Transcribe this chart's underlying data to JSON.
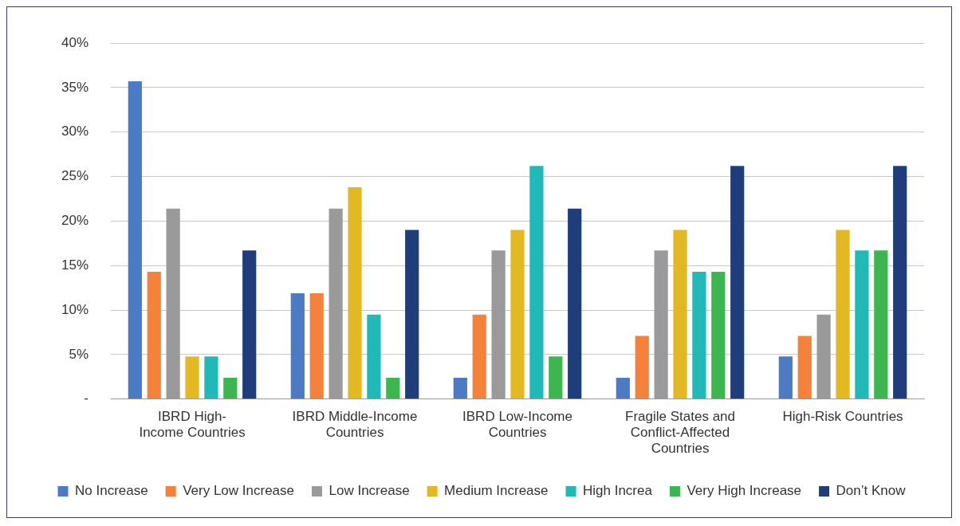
{
  "chart_data": {
    "type": "bar",
    "categories": [
      "IBRD High-\nIncome Countries",
      "IBRD Middle-Income\nCountries",
      "IBRD Low-Income\nCountries",
      "Fragile States and\nConflict-Affected\nCountries",
      "High-Risk Countries"
    ],
    "series": [
      {
        "name": "No Increase",
        "color": "#4a7bc4",
        "values": [
          35.7,
          11.9,
          2.4,
          2.4,
          4.8
        ]
      },
      {
        "name": "Very Low Increase",
        "color": "#f5823a",
        "values": [
          14.3,
          11.9,
          9.5,
          7.1,
          7.1
        ]
      },
      {
        "name": "Low Increase",
        "color": "#9a9a9a",
        "values": [
          21.4,
          21.4,
          16.7,
          16.7,
          9.5
        ]
      },
      {
        "name": "Medium Increase",
        "color": "#e3b923",
        "values": [
          4.8,
          23.8,
          19.0,
          19.0,
          19.0
        ]
      },
      {
        "name": "High Increa",
        "color": "#21b8b8",
        "values": [
          4.8,
          9.5,
          26.2,
          14.3,
          16.7
        ]
      },
      {
        "name": "Very High Increase",
        "color": "#3db64f",
        "values": [
          2.4,
          2.4,
          4.8,
          14.3,
          16.7
        ]
      },
      {
        "name": "Don’t Know",
        "color": "#1f3d7a",
        "values": [
          16.7,
          19.0,
          21.4,
          26.2,
          26.2
        ]
      }
    ],
    "ylim": [
      0,
      40
    ],
    "yticks": [
      {
        "value": 0,
        "label": "-"
      },
      {
        "value": 5,
        "label": "5%"
      },
      {
        "value": 10,
        "label": "10%"
      },
      {
        "value": 15,
        "label": "15%"
      },
      {
        "value": 20,
        "label": "20%"
      },
      {
        "value": 25,
        "label": "25%"
      },
      {
        "value": 30,
        "label": "30%"
      },
      {
        "value": 35,
        "label": "35%"
      },
      {
        "value": 40,
        "label": "40%"
      }
    ],
    "grid": "y",
    "legend": "bottom"
  }
}
